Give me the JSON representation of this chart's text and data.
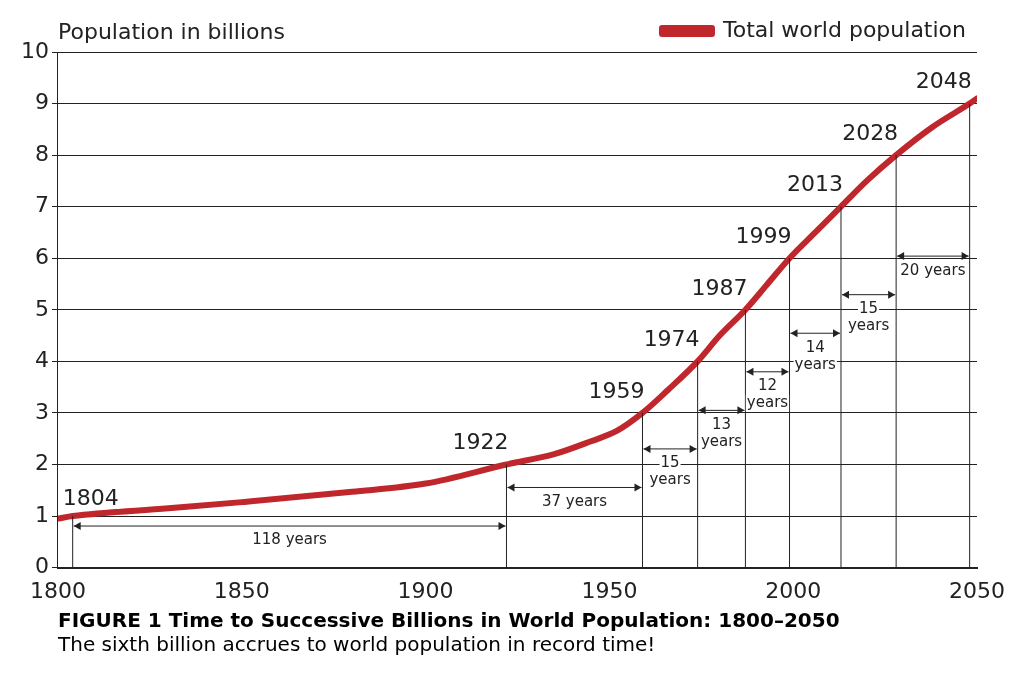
{
  "chart_data": {
    "type": "line",
    "title": "FIGURE 1 Time to Successive Billions in World Population: 1800–2050",
    "subtitle": "The sixth billion accrues to world population in record time!",
    "ylabel": "Population in billions",
    "series": [
      {
        "name": "Total world population",
        "color": "#c0272d",
        "x": [
          1800,
          1804,
          1830,
          1850,
          1880,
          1900,
          1922,
          1935,
          1945,
          1952,
          1959,
          1966,
          1974,
          1980,
          1987,
          1993,
          1999,
          2006,
          2013,
          2020,
          2028,
          2038,
          2048,
          2050
        ],
        "values": [
          0.95,
          1,
          1.15,
          1.27,
          1.47,
          1.63,
          2,
          2.2,
          2.45,
          2.65,
          3,
          3.45,
          4,
          4.5,
          5,
          5.5,
          6,
          6.5,
          7,
          7.5,
          8,
          8.55,
          9,
          9.1
        ]
      }
    ],
    "xlim": [
      1800,
      2050
    ],
    "xticks": [
      1800,
      1850,
      1900,
      1950,
      2000,
      2050
    ],
    "ylim": [
      0,
      10
    ],
    "yticks": [
      0,
      1,
      2,
      3,
      4,
      5,
      6,
      7,
      8,
      9,
      10
    ],
    "grid": "y",
    "legend": "top right",
    "marker": "none",
    "line_style": "solid",
    "annotations": [
      {
        "text": "1804",
        "x": 1804,
        "y": 1
      },
      {
        "text": "1922",
        "x": 1922,
        "y": 2
      },
      {
        "text": "1959",
        "x": 1959,
        "y": 3
      },
      {
        "text": "1974",
        "x": 1974,
        "y": 4
      },
      {
        "text": "1987",
        "x": 1987,
        "y": 5
      },
      {
        "text": "1999",
        "x": 1999,
        "y": 6
      },
      {
        "text": "2013",
        "x": 2013,
        "y": 7
      },
      {
        "text": "2028",
        "x": 2028,
        "y": 8
      },
      {
        "text": "2048",
        "x": 2048,
        "y": 9
      },
      "118 years",
      "37 years",
      "15 years",
      "13 years",
      "12 years",
      "14 years",
      "15 years",
      "20 years"
    ]
  }
}
